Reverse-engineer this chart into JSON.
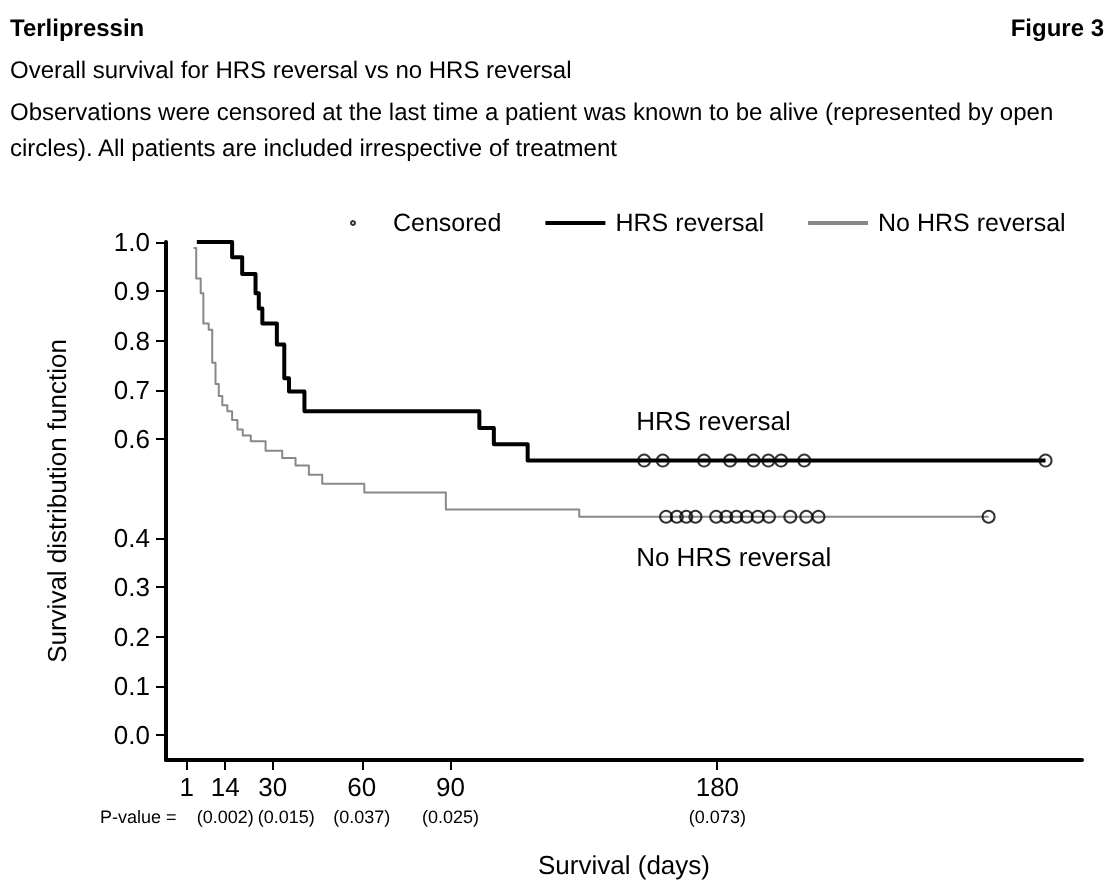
{
  "chart_data": {
    "type": "step",
    "title": "Terlipressin",
    "subtitle": "Overall survival for HRS reversal vs no HRS reversal",
    "xlabel": "Survival (days)",
    "ylabel": "Survival distribution function",
    "annotations": [
      "Figure 3",
      "Observations were censored at the last time a patient was known to be alive (represented by open circles). All patients are included irrespective of treatment",
      "P-value =",
      "(0.002)",
      "(0.015)",
      "(0.037)",
      "(0.025)",
      "(0.073)"
    ],
    "series": [
      {
        "name": "Censored",
        "type": "scatter",
        "color": "#000000",
        "marker": "circle",
        "x": [
          155.3,
          161.6,
          175.5,
          184.3,
          192.2,
          197.2,
          201.5,
          209.3,
          290.7,
          162.7,
          166.3,
          169.5,
          172.6,
          179.6,
          183,
          186.4,
          189.9,
          193.6,
          197.4,
          204.6,
          210,
          214.1,
          271.5
        ],
        "values": [
          0.557,
          0.557,
          0.557,
          0.557,
          0.557,
          0.557,
          0.557,
          0.557,
          0.557,
          0.443,
          0.443,
          0.443,
          0.443,
          0.443,
          0.443,
          0.443,
          0.443,
          0.443,
          0.443,
          0.443,
          0.443,
          0.443,
          0.443
        ]
      },
      {
        "name": "HRS reversal",
        "color": "#000000",
        "line_style": "solid",
        "x": [
          4.4,
          16.3,
          19.7,
          24.2,
          25.3,
          26.5,
          31.4,
          33.9,
          35.5,
          40.7,
          99.7,
          104.6,
          116,
          290.7
        ],
        "values": [
          1.0,
          0.969,
          0.935,
          0.896,
          0.865,
          0.835,
          0.792,
          0.724,
          0.697,
          0.657,
          0.623,
          0.59,
          0.557,
          0.557
        ]
      },
      {
        "name": "No HRS reversal",
        "color": "#888888",
        "line_style": "solid",
        "x": [
          3.3,
          4.2,
          5.7,
          6.6,
          8.4,
          9.6,
          10.7,
          11.8,
          13,
          14.7,
          16.3,
          18.1,
          19.9,
          22.6,
          27.6,
          33.2,
          37.7,
          42.2,
          46.7,
          60.9,
          88.4,
          133.4,
          271.5
        ],
        "values": [
          0.988,
          0.926,
          0.896,
          0.835,
          0.822,
          0.755,
          0.712,
          0.688,
          0.669,
          0.657,
          0.639,
          0.62,
          0.608,
          0.596,
          0.577,
          0.562,
          0.547,
          0.528,
          0.51,
          0.492,
          0.458,
          0.443,
          0.443
        ]
      }
    ],
    "xlim": [
      -6,
      303
    ],
    "xticks": [
      1,
      14,
      30,
      60,
      90,
      180
    ],
    "ylim": [
      -0.05,
      1.0
    ],
    "yticks": [
      {
        "value": 0,
        "label": "0.0"
      },
      {
        "value": 0.1,
        "label": "0.1"
      },
      {
        "value": 0.2,
        "label": "0.2"
      },
      {
        "value": 0.3,
        "label": "0.3"
      },
      {
        "value": 0.4,
        "label": "0.4"
      },
      {
        "value": 0.6,
        "label": "0.6"
      },
      {
        "value": 0.7,
        "label": "0.7"
      },
      {
        "value": 0.8,
        "label": "0.8"
      },
      {
        "value": 0.9,
        "label": "0.9"
      },
      {
        "value": 1.0,
        "label": "1.0"
      }
    ],
    "grid": false,
    "legend": "top"
  }
}
